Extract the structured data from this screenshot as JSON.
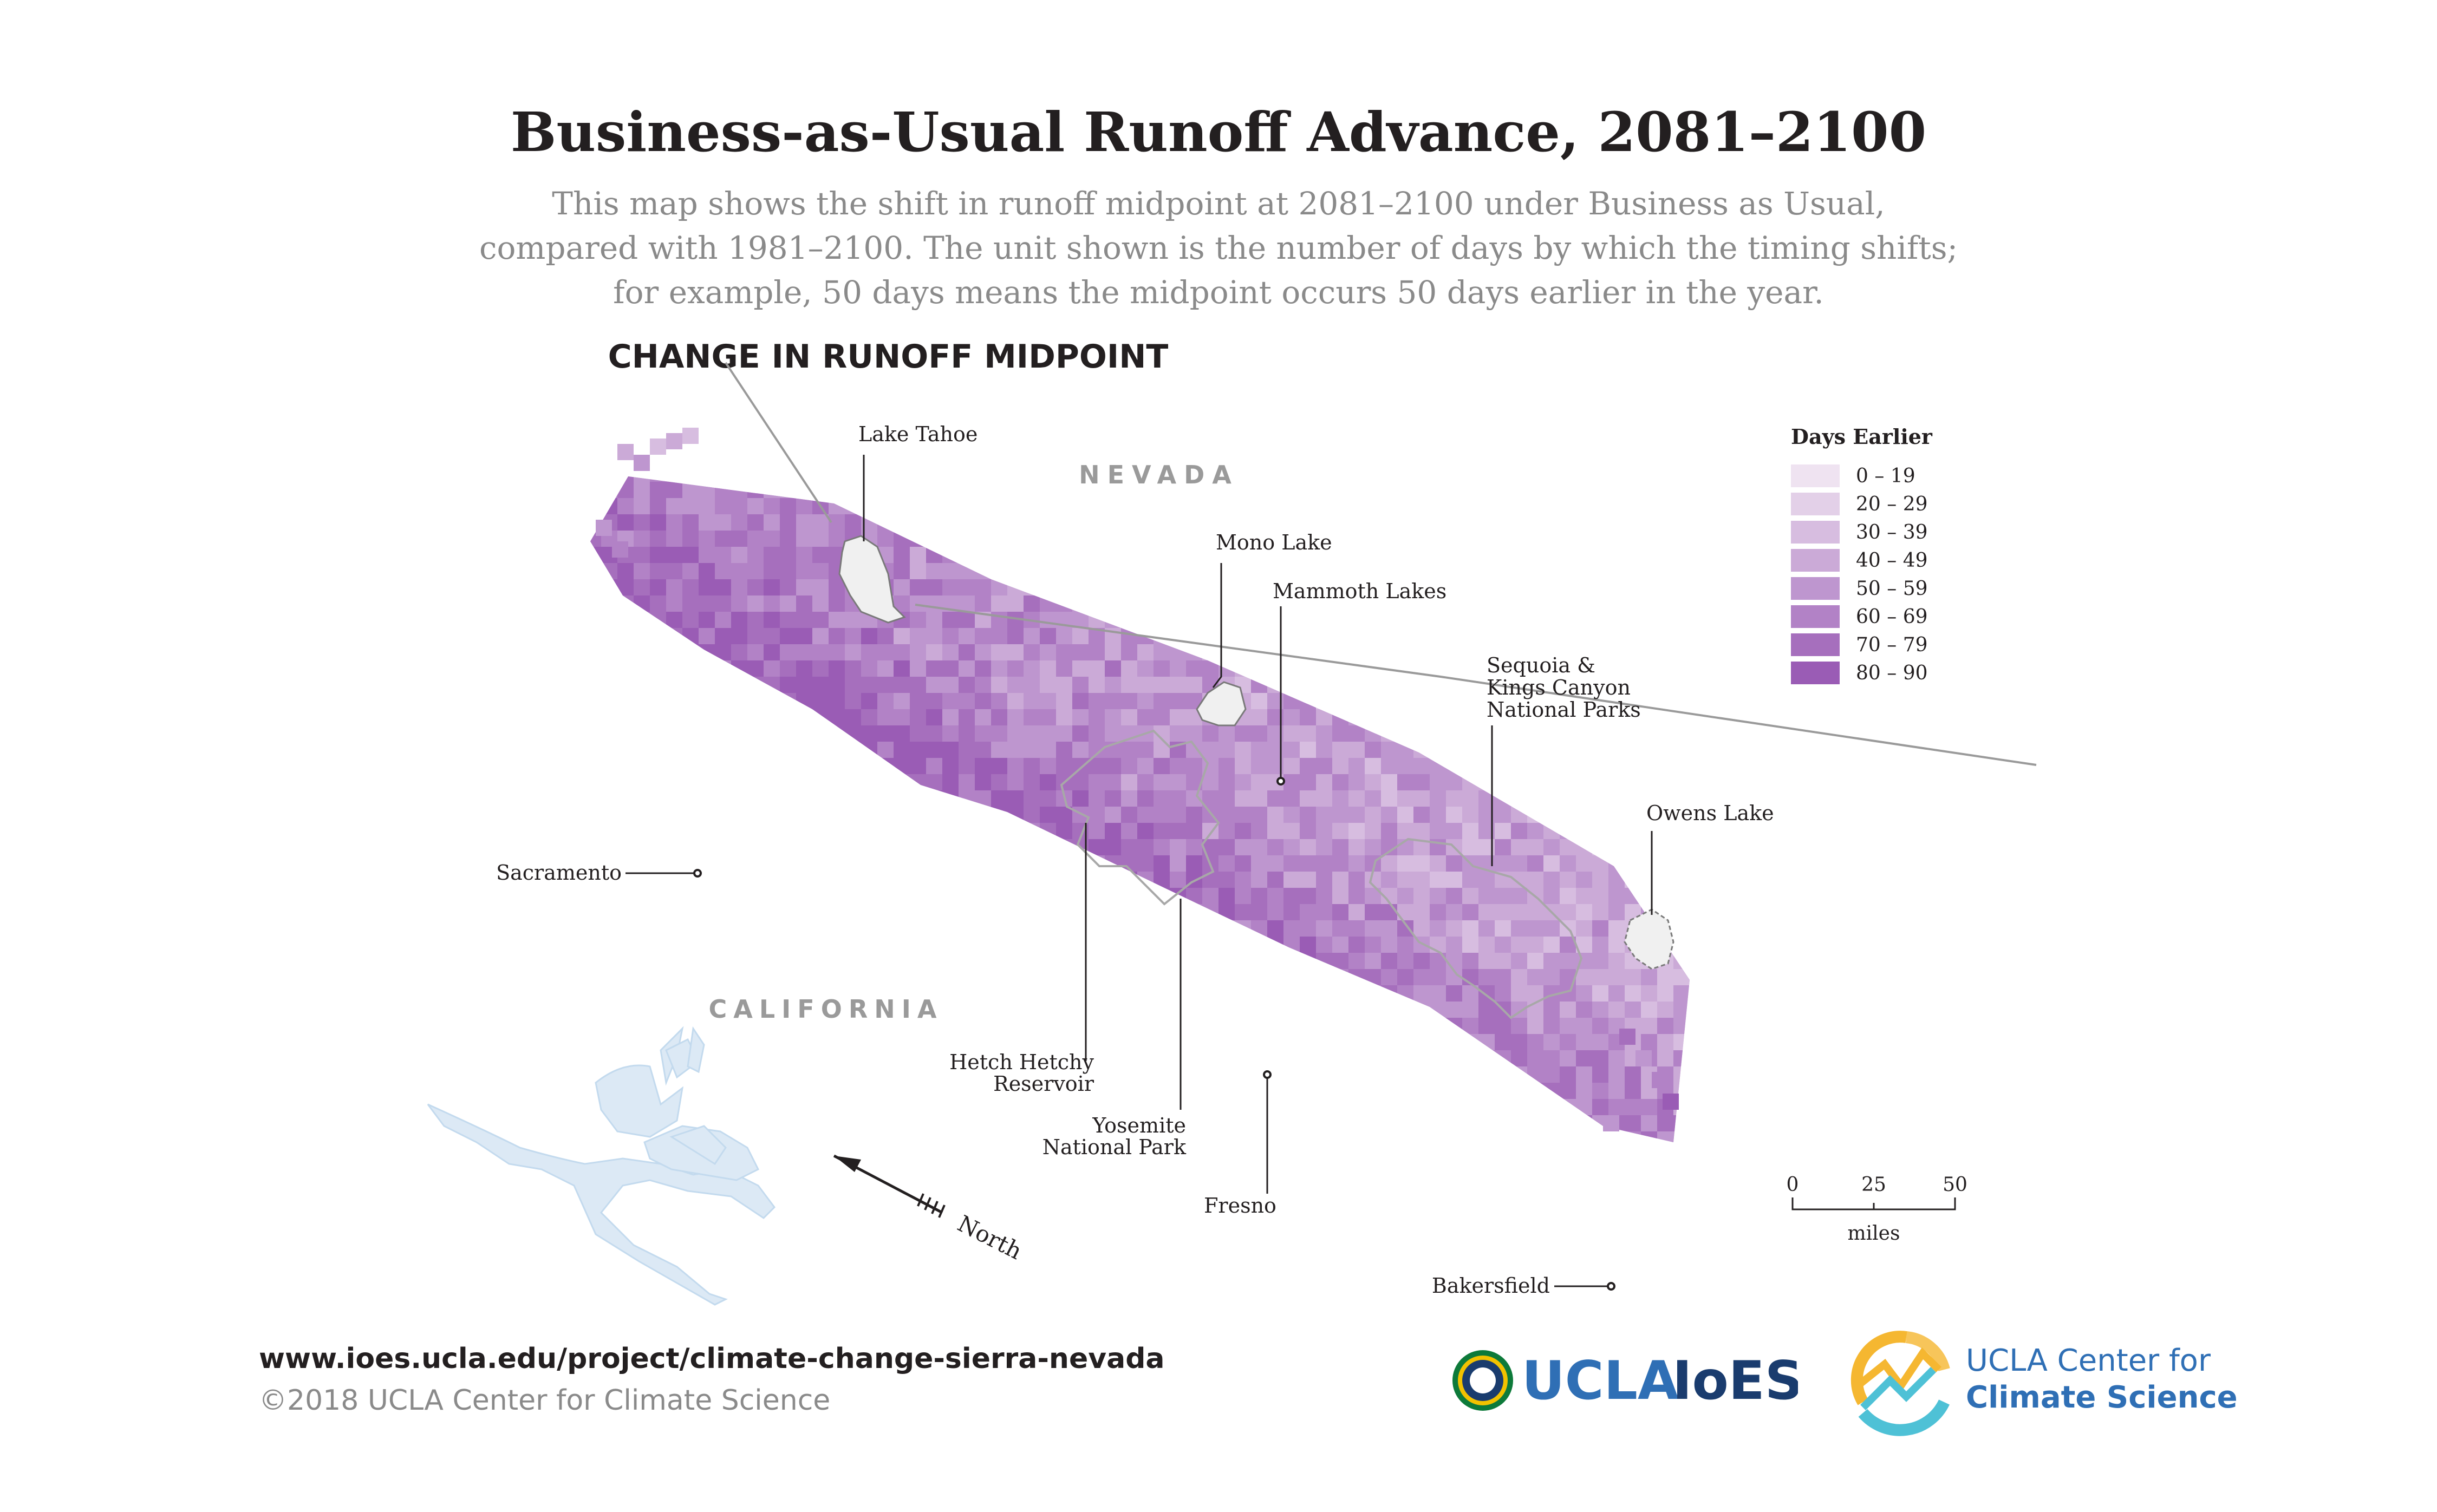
{
  "header": {
    "title": "Business-as-Usual Runoff Advance, 2081–2100",
    "subtitle_lines": [
      "This map shows the shift in runoff midpoint at 2081–2100 under Business as Usual,",
      "compared with 1981–2100. The unit shown is the number of days by which the timing shifts;",
      "for example, 50 days means the midpoint occurs 50 days earlier in the year."
    ]
  },
  "map": {
    "title": "CHANGE IN RUNOFF MIDPOINT",
    "region_labels": {
      "nevada": "NEVADA",
      "california": "CALIFORNIA"
    },
    "place_labels": {
      "lake_tahoe": "Lake Tahoe",
      "mono_lake": "Mono Lake",
      "mammoth_lakes": "Mammoth Lakes",
      "sequoia": [
        "Sequoia &",
        "Kings Canyon",
        "National Parks"
      ],
      "owens_lake": "Owens Lake",
      "sacramento": "Sacramento",
      "hetch_hetchy": [
        "Hetch Hetchy",
        "Reservoir"
      ],
      "yosemite": [
        "Yosemite",
        "National Park"
      ],
      "fresno": "Fresno",
      "bakersfield": "Bakersfield"
    },
    "north_arrow_label": "North",
    "legend": {
      "title": "Days Earlier",
      "items": [
        {
          "label": "0 – 19",
          "color": "#efe3f1"
        },
        {
          "label": "20 – 29",
          "color": "#e3d0e8"
        },
        {
          "label": "30 – 39",
          "color": "#d7bde0"
        },
        {
          "label": "40 – 49",
          "color": "#cbaad7"
        },
        {
          "label": "50 – 59",
          "color": "#be96cf"
        },
        {
          "label": "60 – 69",
          "color": "#b282c6"
        },
        {
          "label": "70 – 79",
          "color": "#a66fbd"
        },
        {
          "label": "80 – 90",
          "color": "#9a5cb5"
        }
      ]
    },
    "scale_bar": {
      "ticks": [
        "0",
        "25",
        "50"
      ],
      "unit": "miles"
    }
  },
  "footer": {
    "url": "www.ioes.ucla.edu/project/climate-change-sierra-nevada",
    "copyright": "©2018 UCLA Center for Climate Science"
  },
  "logos": {
    "ioes": {
      "ucla": "UCLA",
      "ioes": "IoES"
    },
    "ccs": {
      "line1": "UCLA Center for",
      "line2": "Climate Science"
    }
  },
  "colors": {
    "title": "#231f20",
    "muted": "#8a8a8a",
    "water": "#dce9f5",
    "park_outline": "#a8a8a8"
  }
}
